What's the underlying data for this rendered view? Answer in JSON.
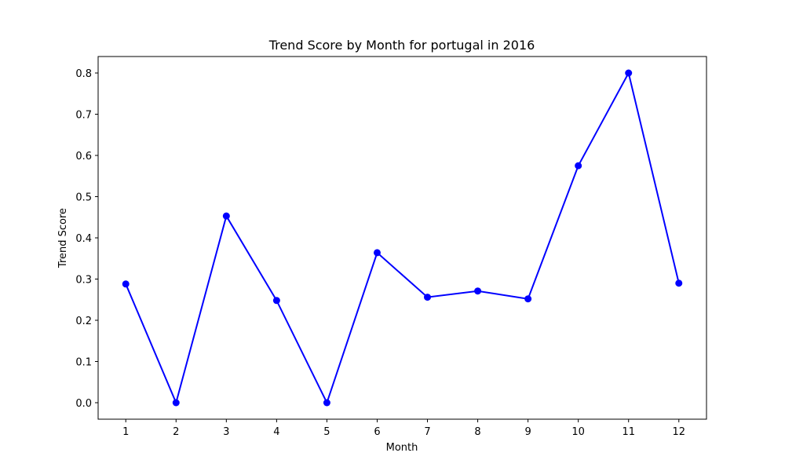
{
  "chart_data": {
    "type": "line",
    "title": "Trend Score by Month for portugal in 2016",
    "xlabel": "Month",
    "ylabel": "Trend Score",
    "x": [
      1,
      2,
      3,
      4,
      5,
      6,
      7,
      8,
      9,
      10,
      11,
      12
    ],
    "x_tick_labels": [
      "1",
      "2",
      "3",
      "4",
      "5",
      "6",
      "7",
      "8",
      "9",
      "10",
      "11",
      "12"
    ],
    "y_ticks": [
      0.0,
      0.1,
      0.2,
      0.3,
      0.4,
      0.5,
      0.6,
      0.7,
      0.8
    ],
    "y_tick_labels": [
      "0.0",
      "0.1",
      "0.2",
      "0.3",
      "0.4",
      "0.5",
      "0.6",
      "0.7",
      "0.8"
    ],
    "xlim": [
      0.45,
      12.55
    ],
    "ylim": [
      -0.04,
      0.84
    ],
    "grid": false,
    "legend": "none",
    "series": [
      {
        "color": "#0000ff",
        "marker": "circle",
        "values": [
          0.288,
          0.0,
          0.453,
          0.248,
          0.0,
          0.364,
          0.256,
          0.271,
          0.252,
          0.575,
          0.8,
          0.29
        ]
      }
    ]
  }
}
